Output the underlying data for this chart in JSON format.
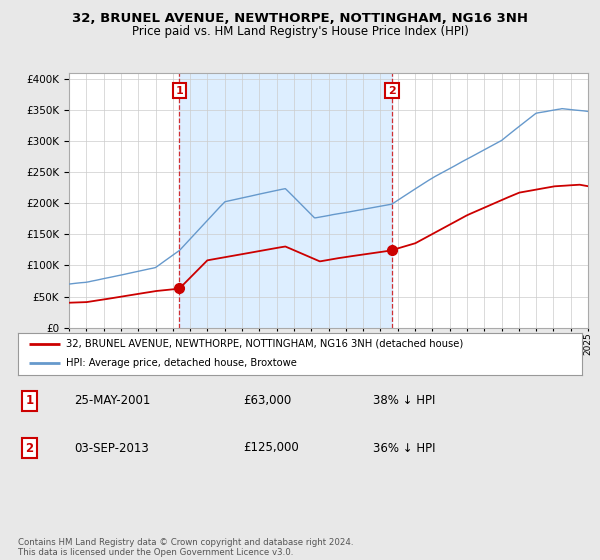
{
  "title1": "32, BRUNEL AVENUE, NEWTHORPE, NOTTINGHAM, NG16 3NH",
  "title2": "Price paid vs. HM Land Registry's House Price Index (HPI)",
  "background_color": "#e8e8e8",
  "plot_bg_color": "#ffffff",
  "shading_color": "#ddeeff",
  "red_line_label": "32, BRUNEL AVENUE, NEWTHORPE, NOTTINGHAM, NG16 3NH (detached house)",
  "blue_line_label": "HPI: Average price, detached house, Broxtowe",
  "annotation1": {
    "num": "1",
    "date": "25-MAY-2001",
    "price": "£63,000",
    "pct": "38% ↓ HPI"
  },
  "annotation2": {
    "num": "2",
    "date": "03-SEP-2013",
    "price": "£125,000",
    "pct": "36% ↓ HPI"
  },
  "footer": "Contains HM Land Registry data © Crown copyright and database right 2024.\nThis data is licensed under the Open Government Licence v3.0.",
  "red_color": "#cc0000",
  "blue_color": "#6699cc",
  "ylim": [
    0,
    410000
  ],
  "yticks": [
    0,
    50000,
    100000,
    150000,
    200000,
    250000,
    300000,
    350000,
    400000
  ],
  "sale1_year": 2001.38,
  "sale1_price": 63000,
  "sale2_year": 2013.67,
  "sale2_price": 125000,
  "xmin": 1995,
  "xmax": 2025
}
